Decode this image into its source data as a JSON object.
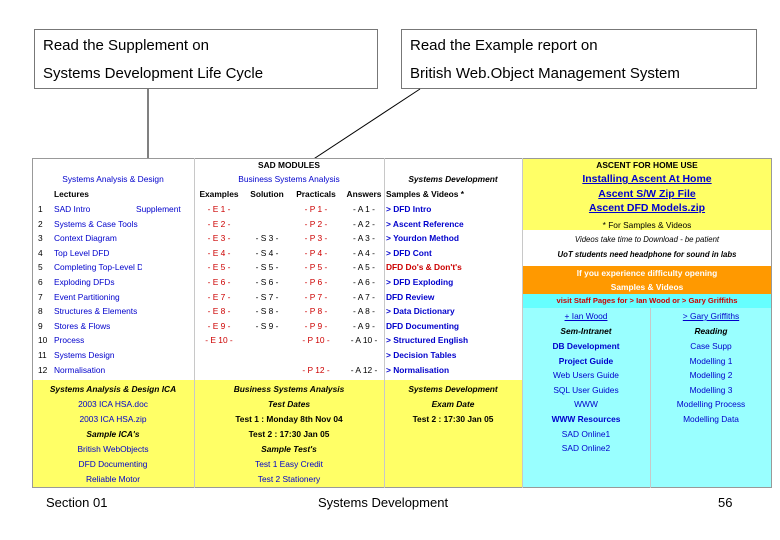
{
  "callouts": {
    "left": {
      "line1": "Read the Supplement on",
      "line2": "Systems Development Life Cycle"
    },
    "right": {
      "line1": "Read the Example report on",
      "line2": "British Web.Object Management System"
    }
  },
  "sheet": {
    "title": "SAD MODULES",
    "headers": {
      "sad": "Systems Analysis & Design",
      "bsa": "Business Systems Analysis",
      "sd": "Systems Development",
      "lectures": "Lectures",
      "examples": "Examples",
      "solution": "Solution",
      "practicals": "Practicals",
      "answers": "Answers",
      "samples": "Samples & Videos",
      "star": "*"
    },
    "lectures": [
      {
        "num": "1",
        "name": "SAD Intro",
        "extra": "Supplement",
        "ex": "- E 1 -",
        "sol": "",
        "prac": "- P 1 -",
        "ans": "- A 1 -",
        "link": "> DFD Intro",
        "linkcolor": "blue"
      },
      {
        "num": "2",
        "name": "Systems & Case Tools",
        "extra": "",
        "ex": "- E 2 -",
        "sol": "",
        "prac": "- P 2 -",
        "ans": "- A 2 -",
        "link": "> Ascent Reference",
        "linkcolor": "blue"
      },
      {
        "num": "3",
        "name": "Context Diagram",
        "extra": "",
        "ex": "- E 3 -",
        "sol": "- S 3 -",
        "prac": "- P 3 -",
        "ans": "- A 3 -",
        "link": "> Yourdon Method",
        "linkcolor": "blue"
      },
      {
        "num": "4",
        "name": "Top Level DFD",
        "extra": "",
        "ex": "- E 4 -",
        "sol": "- S 4 -",
        "prac": "- P 4 -",
        "ans": "- A 4 -",
        "link": "> DFD Cont",
        "linkcolor": "blue"
      },
      {
        "num": "5",
        "name": "Completing Top-Level DFD",
        "extra": "",
        "ex": "- E 5 -",
        "sol": "- S 5 -",
        "prac": "- P 5 -",
        "ans": "- A 5 -",
        "link": "DFD Do's & Don't's",
        "linkcolor": "red"
      },
      {
        "num": "6",
        "name": "Exploding DFDs",
        "extra": "",
        "ex": "- E 6 -",
        "sol": "- S 6 -",
        "prac": "- P 6 -",
        "ans": "- A 6 -",
        "link": "> DFD Exploding",
        "linkcolor": "blue"
      },
      {
        "num": "7",
        "name": "Event Partitioning",
        "extra": "",
        "ex": "- E 7 -",
        "sol": "- S 7 -",
        "prac": "- P 7 -",
        "ans": "- A 7 -",
        "link": "DFD Review",
        "linkcolor": "blue"
      },
      {
        "num": "8",
        "name": "Structures & Elements",
        "extra": "",
        "ex": "- E 8 -",
        "sol": "- S 8 -",
        "prac": "- P 8 -",
        "ans": "- A 8 -",
        "link": "> Data Dictionary",
        "linkcolor": "blue"
      },
      {
        "num": "9",
        "name": "Stores & Flows",
        "extra": "",
        "ex": "- E 9 -",
        "sol": "- S 9 -",
        "prac": "- P 9 -",
        "ans": "- A 9 -",
        "link": "DFD Documenting",
        "linkcolor": "blue"
      },
      {
        "num": "10",
        "name": "Process",
        "extra": "",
        "ex": "- E 10 -",
        "sol": "",
        "prac": "- P 10 -",
        "ans": "- A 10 -",
        "link": "> Structured English",
        "linkcolor": "blue"
      },
      {
        "num": "11",
        "name": "Systems Design",
        "extra": "",
        "ex": "",
        "sol": "",
        "prac": "",
        "ans": "",
        "link": "> Decision Tables",
        "linkcolor": "blue"
      },
      {
        "num": "12",
        "name": "Normalisation",
        "extra": "",
        "ex": "",
        "sol": "",
        "prac": "- P 12 -",
        "ans": "- A 12 -",
        "link": "> Normalisation",
        "linkcolor": "blue"
      }
    ],
    "ascent": {
      "header": "ASCENT FOR HOME USE",
      "install": "Installing Ascent At Home",
      "zip": "Ascent S/W Zip File",
      "dfd": "Ascent DFD Models.zip",
      "samples_note": "* For Samples & Videos",
      "videos_note": "Videos take time to Download - be patient",
      "uot_note": "UoT students need headphone for sound in labs",
      "difficulty": "If you experience difficulty opening",
      "samples_videos": "Samples & Videos",
      "visit": "visit Staff Pages for > Ian Wood or > Gary Griffiths",
      "ian": "+ Ian Wood",
      "gary": "> Gary Griffiths"
    },
    "intranet": {
      "header_left": "Sem-Intranet",
      "header_right": "Reading",
      "rows": [
        {
          "left": "DB Development",
          "right": "Case Supp"
        },
        {
          "left": "Project Guide",
          "right": "Modelling 1"
        },
        {
          "left": "Web Users Guide",
          "right": "Modelling 2"
        },
        {
          "left": "SQL User Guides",
          "right": "Modelling 3"
        },
        {
          "left": "WWW",
          "right": "Modelling Process"
        },
        {
          "left": "WWW Resources",
          "right": "Modelling Data"
        },
        {
          "left": "SAD Online1",
          "right": ""
        },
        {
          "left": "SAD Online2",
          "right": ""
        }
      ]
    },
    "ica": {
      "sad_header": "Systems Analysis & Design ICA",
      "bsa_header": "Business Systems Analysis",
      "sd_header": "Systems Development",
      "test_dates": "Test Dates",
      "exam_date": "Exam Date",
      "sad_items": [
        "2003 ICA HSA.doc",
        "2003 ICA HSA.zip",
        "Sample ICA's",
        "British WebObjects",
        "DFD Documenting",
        "Reliable Motor"
      ],
      "test1": "Test 1 : Monday 8th Nov 04",
      "test2": "Test 2 : 17:30 Jan 05",
      "sample_tests": "Sample Test's",
      "easy_credit": "Test 1 Easy Credit",
      "stationery": "Test 2 Stationery",
      "exam_test2": "Test 2 : 17:30 Jan 05"
    }
  },
  "footer": {
    "left": "Section 01",
    "center": "Systems Development",
    "right": "56"
  }
}
